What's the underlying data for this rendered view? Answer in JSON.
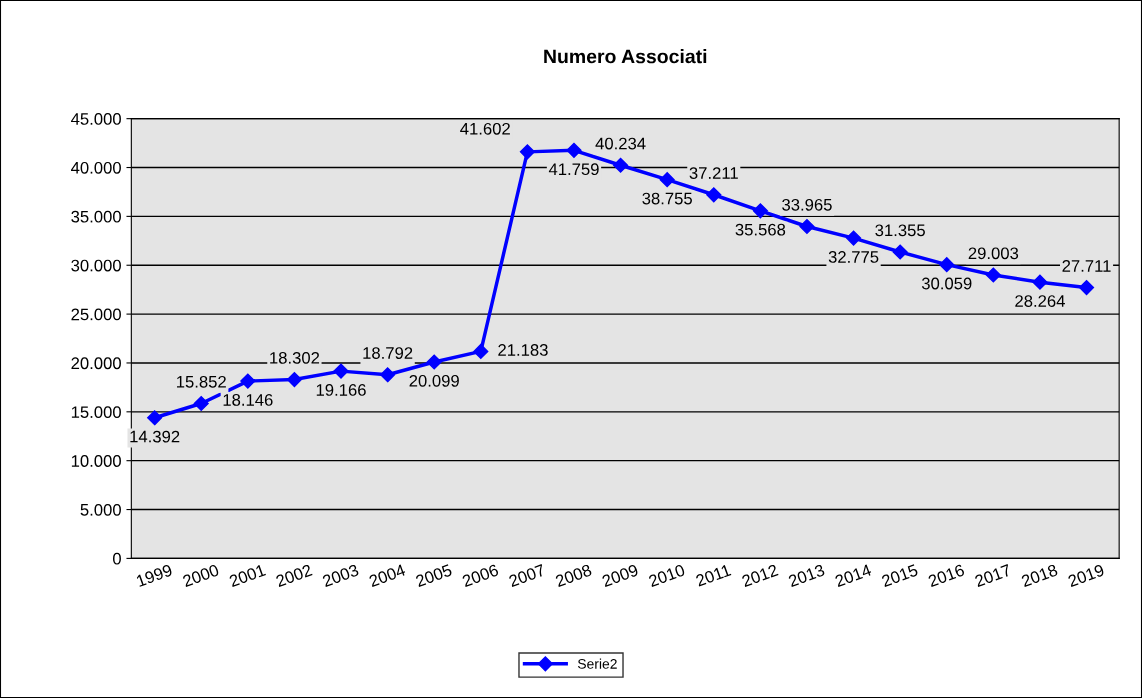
{
  "chart_data": {
    "type": "line",
    "title": "Numero Associati",
    "categories": [
      "1999",
      "2000",
      "2001",
      "2002",
      "2003",
      "2004",
      "2005",
      "2006",
      "2007",
      "2008",
      "2009",
      "2010",
      "2011",
      "2012",
      "2013",
      "2014",
      "2015",
      "2016",
      "2017",
      "2018",
      "2019"
    ],
    "series": [
      {
        "name": "Serie2",
        "color": "#0000ff",
        "values": [
          14392,
          15852,
          18146,
          18302,
          19166,
          18792,
          20099,
          21183,
          41602,
          41759,
          40234,
          38755,
          37211,
          35568,
          33965,
          32775,
          31355,
          30059,
          29003,
          28264,
          27711
        ],
        "value_labels": [
          "14.392",
          "15.852",
          "18.146",
          "18.302",
          "19.166",
          "18.792",
          "20.099",
          "21.183",
          "41.602",
          "41.759",
          "40.234",
          "38.755",
          "37.211",
          "35.568",
          "33.965",
          "32.775",
          "31.355",
          "30.059",
          "29.003",
          "28.264",
          "27.711"
        ]
      }
    ],
    "ylim": [
      0,
      45000
    ],
    "yticks": [
      {
        "value": 0,
        "label": "0"
      },
      {
        "value": 5000,
        "label": "5.000"
      },
      {
        "value": 10000,
        "label": "10.000"
      },
      {
        "value": 15000,
        "label": "15.000"
      },
      {
        "value": 20000,
        "label": "20.000"
      },
      {
        "value": 25000,
        "label": "25.000"
      },
      {
        "value": 30000,
        "label": "30.000"
      },
      {
        "value": 35000,
        "label": "35.000"
      },
      {
        "value": 40000,
        "label": "40.000"
      },
      {
        "value": 45000,
        "label": "45.000"
      }
    ],
    "grid": "y",
    "legend": "bottom",
    "marker": "diamond",
    "line_style": "solid"
  }
}
